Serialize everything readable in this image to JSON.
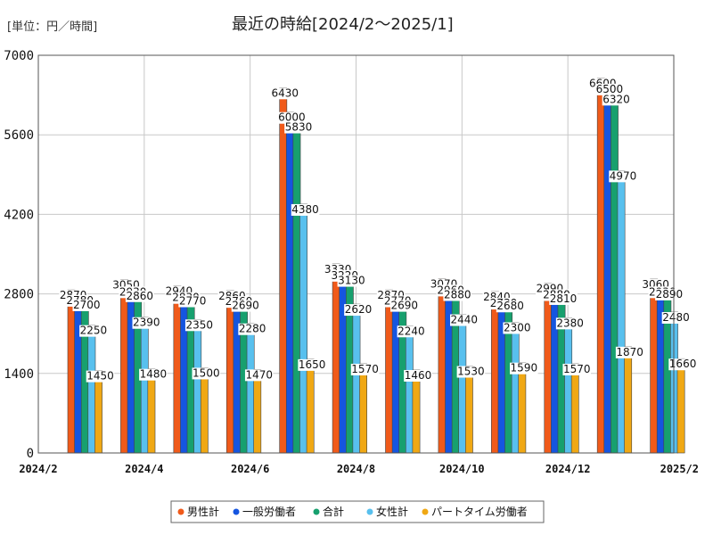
{
  "chart_data": {
    "type": "bar",
    "title": "最近の時給[2024/2～2025/1]",
    "unit_label": "[単位：円／時間]",
    "ylim": [
      0,
      7000
    ],
    "yticks": [
      0,
      1400,
      2800,
      4200,
      5600,
      7000
    ],
    "xtick_labels": [
      "2024/2",
      "2024/4",
      "2024/6",
      "2024/8",
      "2024/10",
      "2024/12",
      "2025/2"
    ],
    "categories": [
      "2024/2",
      "2024/3",
      "2024/4",
      "2024/5",
      "2024/6",
      "2024/7",
      "2024/8",
      "2024/9",
      "2024/10",
      "2024/11",
      "2024/12",
      "2025/1"
    ],
    "grid": true,
    "legend_position": "bottom",
    "series": [
      {
        "name": "男性計",
        "color": "#f05a1a",
        "values": [
          2870,
          3050,
          2940,
          2860,
          6430,
          3330,
          2870,
          3070,
          2840,
          2990,
          6600,
          3060
        ]
      },
      {
        "name": "一般労働者",
        "color": "#1555e0",
        "values": [
          2780,
          2930,
          2830,
          2760,
          6000,
          3220,
          2770,
          2960,
          2730,
          2880,
          6500,
          2930
        ]
      },
      {
        "name": "合計",
        "color": "#17a06e",
        "values": [
          2700,
          2860,
          2770,
          2690,
          5830,
          3130,
          2690,
          2880,
          2680,
          2810,
          6320,
          2890
        ]
      },
      {
        "name": "女性計",
        "color": "#58c0ee",
        "values": [
          2250,
          2390,
          2350,
          2280,
          4380,
          2620,
          2240,
          2440,
          2300,
          2380,
          4970,
          2480
        ]
      },
      {
        "name": "パートタイム労働者",
        "color": "#f0a814",
        "values": [
          1450,
          1480,
          1500,
          1470,
          1650,
          1570,
          1460,
          1530,
          1590,
          1570,
          1870,
          1660
        ]
      }
    ]
  }
}
